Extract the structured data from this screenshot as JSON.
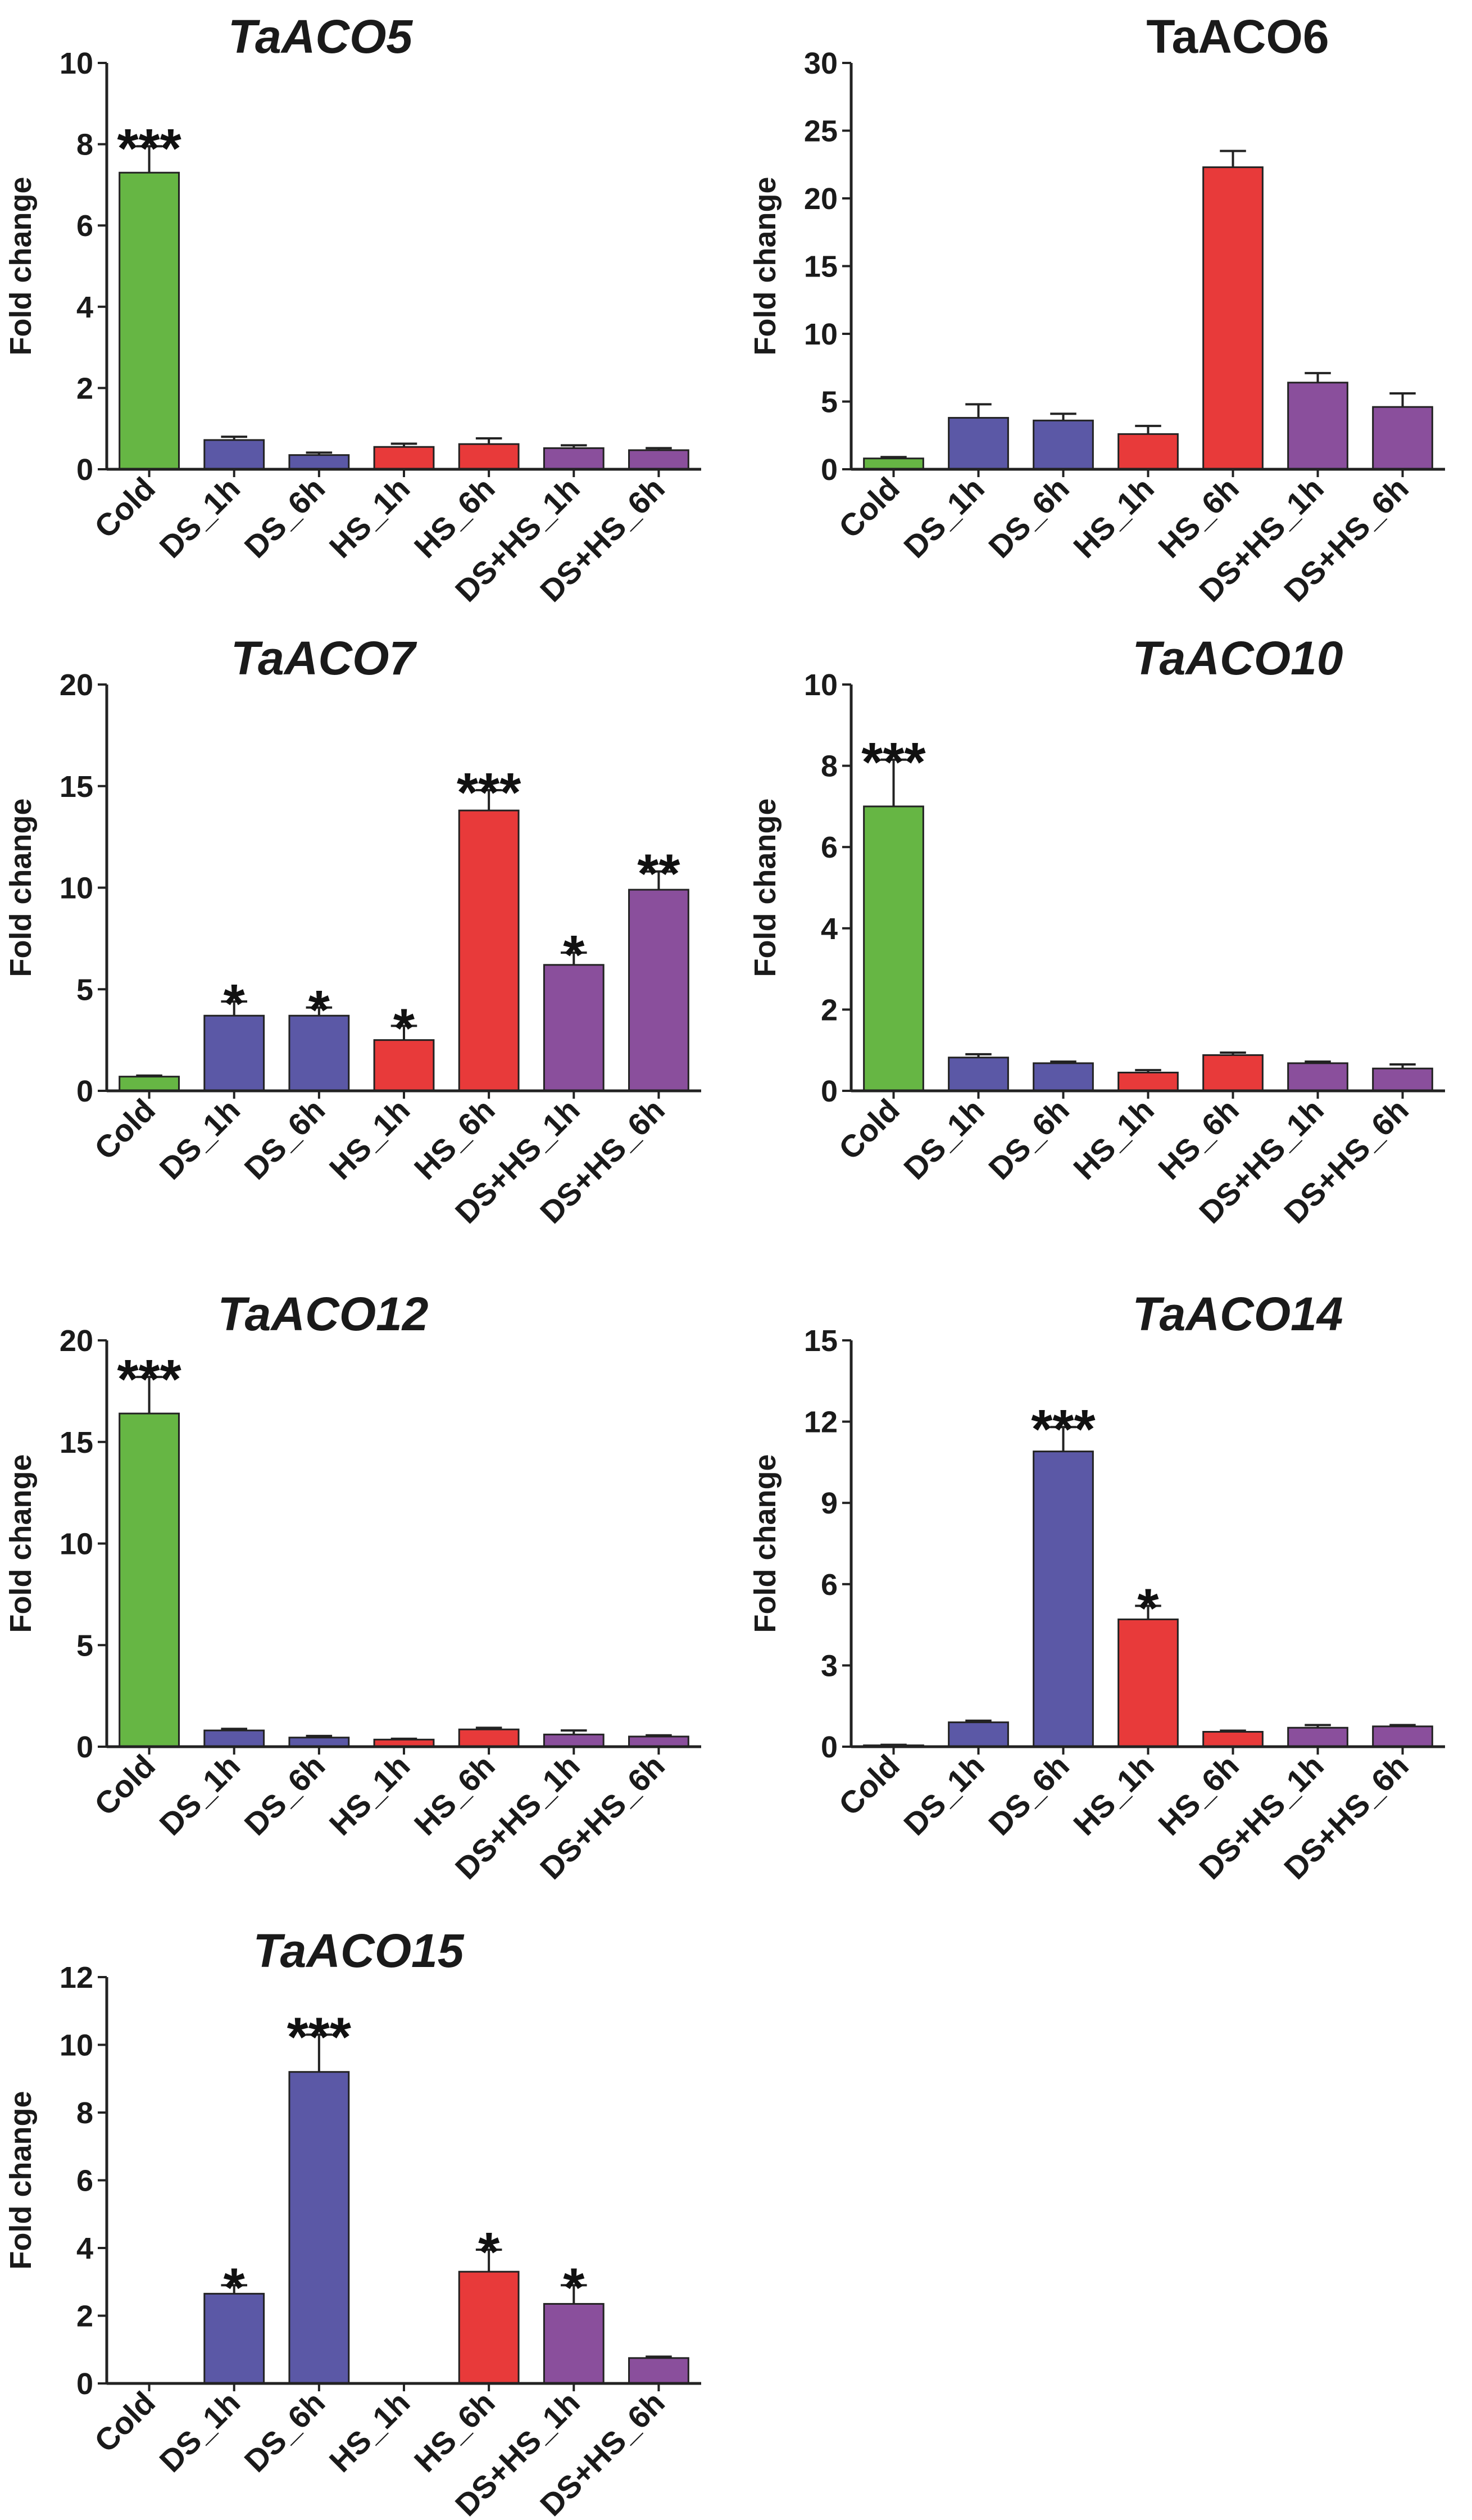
{
  "figure": {
    "ylabel": "Fold change"
  },
  "colors": {
    "Cold": "#66b644",
    "DS_1h": "#5b58a6",
    "DS_6h": "#5b58a6",
    "HS_1h": "#e83a3a",
    "HS_6h": "#e83a3a",
    "DS+HS_1h": "#8a4f9c",
    "DS+HS_6h": "#8a4f9c"
  },
  "chart_data": [
    {
      "type": "bar",
      "title": "TaACO5",
      "title_italic": true,
      "ylabel": "Fold change",
      "ylim": [
        0,
        10
      ],
      "yticks": [
        0,
        2,
        4,
        6,
        8,
        10
      ],
      "categories": [
        "Cold",
        "DS_1h",
        "DS_6h",
        "HS_1h",
        "HS_6h",
        "DS+HS_1h",
        "DS+HS_6h"
      ],
      "values": [
        7.3,
        0.72,
        0.35,
        0.55,
        0.62,
        0.52,
        0.47
      ],
      "errors": [
        0.65,
        0.08,
        0.06,
        0.08,
        0.14,
        0.07,
        0.05
      ],
      "significance": [
        "***",
        "",
        "",
        "",
        "",
        "",
        ""
      ]
    },
    {
      "type": "bar",
      "title": "TaACO6",
      "title_italic": false,
      "ylabel": "Fold change",
      "ylim": [
        0,
        30
      ],
      "yticks": [
        0,
        5,
        10,
        15,
        20,
        25,
        30
      ],
      "categories": [
        "Cold",
        "DS_1h",
        "DS_6h",
        "HS_1h",
        "HS_6h",
        "DS+HS_1h",
        "DS+HS_6h"
      ],
      "values": [
        0.8,
        3.8,
        3.6,
        2.6,
        22.3,
        6.4,
        4.6
      ],
      "errors": [
        0.1,
        1.0,
        0.5,
        0.6,
        1.2,
        0.7,
        1.0
      ],
      "significance": [
        "",
        "",
        "",
        "",
        "",
        "",
        ""
      ]
    },
    {
      "type": "bar",
      "title": "TaACO7",
      "title_italic": true,
      "ylabel": "Fold change",
      "ylim": [
        0,
        20
      ],
      "yticks": [
        0,
        5,
        10,
        15,
        20
      ],
      "categories": [
        "Cold",
        "DS_1h",
        "DS_6h",
        "HS_1h",
        "HS_6h",
        "DS+HS_1h",
        "DS+HS_6h"
      ],
      "values": [
        0.7,
        3.7,
        3.7,
        2.5,
        13.8,
        6.2,
        9.9
      ],
      "errors": [
        0.05,
        0.7,
        0.4,
        0.7,
        1.0,
        0.6,
        0.9
      ],
      "significance": [
        "",
        "*",
        "*",
        "*",
        "***",
        "*",
        "**"
      ]
    },
    {
      "type": "bar",
      "title": "TaACO10",
      "title_italic": true,
      "ylabel": "Fold change",
      "ylim": [
        0,
        10
      ],
      "yticks": [
        0,
        2,
        4,
        6,
        8,
        10
      ],
      "categories": [
        "Cold",
        "DS_1h",
        "DS_6h",
        "HS_1h",
        "HS_6h",
        "DS+HS_1h",
        "DS+HS_6h"
      ],
      "values": [
        7.0,
        0.82,
        0.68,
        0.45,
        0.88,
        0.68,
        0.55
      ],
      "errors": [
        1.15,
        0.08,
        0.04,
        0.06,
        0.06,
        0.04,
        0.1
      ],
      "significance": [
        "***",
        "",
        "",
        "",
        "",
        "",
        ""
      ]
    },
    {
      "type": "bar",
      "title": "TaACO12",
      "title_italic": true,
      "ylabel": "Fold change",
      "ylim": [
        0,
        20
      ],
      "yticks": [
        0,
        5,
        10,
        15,
        20
      ],
      "categories": [
        "Cold",
        "DS_1h",
        "DS_6h",
        "HS_1h",
        "HS_6h",
        "DS+HS_1h",
        "DS+HS_6h"
      ],
      "values": [
        16.4,
        0.8,
        0.45,
        0.35,
        0.85,
        0.6,
        0.5
      ],
      "errors": [
        1.8,
        0.08,
        0.08,
        0.04,
        0.08,
        0.2,
        0.06
      ],
      "significance": [
        "***",
        "",
        "",
        "",
        "",
        "",
        ""
      ]
    },
    {
      "type": "bar",
      "title": "TaACO14",
      "title_italic": true,
      "ylabel": "Fold change",
      "ylim": [
        0,
        15
      ],
      "yticks": [
        0,
        3,
        6,
        9,
        12,
        15
      ],
      "categories": [
        "Cold",
        "DS_1h",
        "DS_6h",
        "HS_1h",
        "HS_6h",
        "DS+HS_1h",
        "DS+HS_6h"
      ],
      "values": [
        0.05,
        0.9,
        10.9,
        4.7,
        0.55,
        0.7,
        0.75
      ],
      "errors": [
        0.02,
        0.06,
        0.9,
        0.5,
        0.04,
        0.1,
        0.05
      ],
      "significance": [
        "",
        "",
        "***",
        "*",
        "",
        "",
        ""
      ]
    },
    {
      "type": "bar",
      "title": "TaACO15",
      "title_italic": true,
      "ylabel": "Fold change",
      "ylim": [
        0,
        12
      ],
      "yticks": [
        0,
        2,
        4,
        6,
        8,
        10,
        12
      ],
      "categories": [
        "Cold",
        "DS_1h",
        "DS_6h",
        "HS_1h",
        "HS_6h",
        "DS+HS_1h",
        "DS+HS_6h"
      ],
      "values": [
        0,
        2.65,
        9.2,
        0,
        3.3,
        2.35,
        0.75
      ],
      "errors": [
        0,
        0.25,
        1.1,
        0,
        0.65,
        0.55,
        0.04
      ],
      "significance": [
        "",
        "*",
        "***",
        "",
        "*",
        "*",
        ""
      ]
    }
  ]
}
